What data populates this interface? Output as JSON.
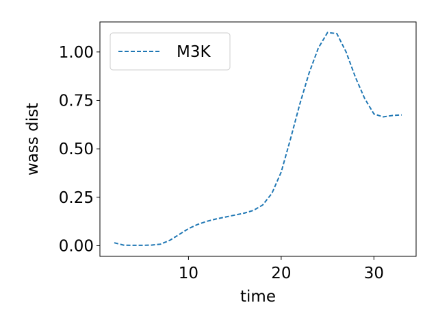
{
  "chart_data": {
    "type": "line",
    "xlabel": "time",
    "ylabel": "wass dist",
    "xlim": [
      0.45,
      34.55
    ],
    "ylim": [
      -0.055,
      1.155
    ],
    "xticks": [
      10,
      20,
      30
    ],
    "xtick_labels": [
      "10",
      "20",
      "30"
    ],
    "yticks": [
      0.0,
      0.25,
      0.5,
      0.75,
      1.0
    ],
    "ytick_labels": [
      "0.00",
      "0.25",
      "0.50",
      "0.75",
      "1.00"
    ],
    "grid": false,
    "legend_position": "upper-left",
    "series": [
      {
        "name": "M3K",
        "color": "#1f77b4",
        "line_style": "dashed",
        "x": [
          2,
          3,
          4,
          5,
          6,
          7,
          8,
          9,
          10,
          11,
          12,
          13,
          14,
          15,
          16,
          17,
          18,
          19,
          20,
          21,
          22,
          23,
          24,
          25,
          26,
          27,
          28,
          29,
          30,
          31,
          32,
          33
        ],
        "y": [
          0.015,
          0.003,
          0.002,
          0.002,
          0.003,
          0.008,
          0.028,
          0.058,
          0.088,
          0.11,
          0.126,
          0.138,
          0.148,
          0.158,
          0.168,
          0.182,
          0.21,
          0.27,
          0.38,
          0.55,
          0.73,
          0.89,
          1.02,
          1.1,
          1.095,
          1.0,
          0.87,
          0.76,
          0.68,
          0.665,
          0.672,
          0.675
        ]
      }
    ]
  }
}
